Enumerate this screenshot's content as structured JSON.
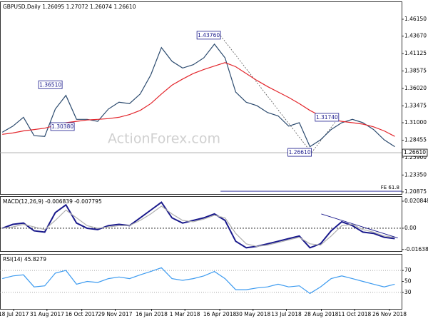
{
  "chart_data": [
    {
      "type": "line",
      "title": "GBPUSD,Daily 1.26095 1.27072 1.26074 1.26610",
      "watermark": "ActionForex.com",
      "x": [
        "2017-07-03",
        "2017-07-17",
        "2017-07-31",
        "2017-08-14",
        "2017-08-28",
        "2017-09-11",
        "2017-09-25",
        "2017-10-09",
        "2017-10-23",
        "2017-11-06",
        "2017-11-20",
        "2017-12-04",
        "2017-12-18",
        "2018-01-01",
        "2018-01-15",
        "2018-01-29",
        "2018-02-12",
        "2018-02-26",
        "2018-03-12",
        "2018-03-26",
        "2018-04-09",
        "2018-04-23",
        "2018-05-07",
        "2018-05-21",
        "2018-06-04",
        "2018-06-18",
        "2018-07-02",
        "2018-07-16",
        "2018-07-30",
        "2018-08-13",
        "2018-08-27",
        "2018-09-10",
        "2018-09-24",
        "2018-10-08",
        "2018-10-22",
        "2018-11-05",
        "2018-11-19",
        "2018-12-03"
      ],
      "xlim": [
        "2017-06-30",
        "2018-12-12"
      ],
      "series": [
        {
          "color": "#2b4a6e",
          "values": [
            1.296,
            1.305,
            1.318,
            1.291,
            1.29,
            1.33,
            1.35,
            1.315,
            1.315,
            1.312,
            1.33,
            1.34,
            1.338,
            1.352,
            1.38,
            1.42,
            1.4,
            1.39,
            1.395,
            1.405,
            1.425,
            1.405,
            1.355,
            1.34,
            1.335,
            1.325,
            1.32,
            1.305,
            1.31,
            1.275,
            1.285,
            1.3,
            1.31,
            1.315,
            1.31,
            1.3,
            1.285,
            1.275
          ]
        },
        {
          "color": "#e3262c",
          "values": [
            1.293,
            1.295,
            1.298,
            1.3,
            1.302,
            1.306,
            1.31,
            1.312,
            1.314,
            1.315,
            1.316,
            1.318,
            1.322,
            1.328,
            1.338,
            1.352,
            1.365,
            1.374,
            1.382,
            1.388,
            1.393,
            1.398,
            1.392,
            1.382,
            1.372,
            1.363,
            1.355,
            1.347,
            1.338,
            1.328,
            1.32,
            1.315,
            1.312,
            1.31,
            1.308,
            1.304,
            1.298,
            1.29
          ]
        }
      ],
      "ylim": [
        1.2056,
        1.4876
      ],
      "yticks": [
        {
          "value": 1.4615,
          "label": "1.46150"
        },
        {
          "value": 1.4367,
          "label": "1.43670"
        },
        {
          "value": 1.41125,
          "label": "1.41125"
        },
        {
          "value": 1.38575,
          "label": "1.38575"
        },
        {
          "value": 1.3602,
          "label": "1.36020"
        },
        {
          "value": 1.33475,
          "label": "1.33475"
        },
        {
          "value": 1.31,
          "label": "1.31000"
        },
        {
          "value": 1.28455,
          "label": "1.28455"
        },
        {
          "value": 1.259,
          "label": "1.25900"
        },
        {
          "value": 1.2335,
          "label": "1.23350"
        },
        {
          "value": 1.20875,
          "label": "1.20875"
        }
      ],
      "annotations": [
        {
          "x": "2017-09-20",
          "value": 1.3651,
          "label": "1.36510"
        },
        {
          "x": "2017-10-06",
          "value": 1.3038,
          "label": "1.30380"
        },
        {
          "x": "2018-04-17",
          "value": 1.4376,
          "label": "1.43760"
        },
        {
          "x": "2018-08-15",
          "value": 1.2661,
          "label": "1.26610"
        },
        {
          "x": "2018-09-20",
          "value": 1.3174,
          "label": "1.31740"
        }
      ],
      "last": {
        "value": 1.2661,
        "label": "1.26610"
      },
      "fe": {
        "x": "2018-04-17",
        "value": 1.2097,
        "label": "FE 61.8"
      },
      "grid": false
    },
    {
      "type": "line",
      "title": "MACD(12,26,9) -0.006839 -0.007795",
      "series": [
        {
          "color": "#1a1a8c",
          "values": [
            0.0,
            0.003,
            0.004,
            -0.002,
            -0.003,
            0.012,
            0.018,
            0.004,
            0.0,
            -0.001,
            0.002,
            0.003,
            0.002,
            0.008,
            0.014,
            0.02,
            0.008,
            0.004,
            0.006,
            0.008,
            0.011,
            0.006,
            -0.01,
            -0.015,
            -0.014,
            -0.012,
            -0.01,
            -0.008,
            -0.006,
            -0.015,
            -0.012,
            -0.002,
            0.005,
            0.002,
            -0.003,
            -0.004,
            -0.007,
            -0.008
          ]
        },
        {
          "color": "#b0b0b0",
          "values": [
            0.0,
            0.001,
            0.003,
            0.001,
            -0.001,
            0.006,
            0.014,
            0.008,
            0.002,
            0.0,
            0.001,
            0.002,
            0.002,
            0.006,
            0.011,
            0.017,
            0.011,
            0.006,
            0.005,
            0.007,
            0.01,
            0.008,
            -0.004,
            -0.012,
            -0.014,
            -0.013,
            -0.011,
            -0.009,
            -0.007,
            -0.012,
            -0.013,
            -0.006,
            0.002,
            0.003,
            -0.001,
            -0.003,
            -0.006,
            -0.007
          ]
        }
      ],
      "ylim": [
        -0.0176,
        0.0247
      ],
      "yticks": [
        0.020848,
        {
          "value": 0,
          "label": "0.00"
        },
        -0.016389
      ],
      "trendline": {
        "x": [
          "2018-08-28",
          "2018-12-07"
        ],
        "values": [
          0.011,
          -0.0075
        ]
      },
      "grid": false
    },
    {
      "type": "line",
      "title": "RSI(14) 45.8279",
      "series": [
        {
          "color": "#3d9bf0",
          "values": [
            55,
            60,
            62,
            40,
            42,
            65,
            70,
            45,
            50,
            48,
            55,
            58,
            55,
            62,
            68,
            75,
            55,
            52,
            55,
            60,
            68,
            55,
            35,
            35,
            38,
            40,
            45,
            40,
            42,
            28,
            40,
            55,
            60,
            55,
            50,
            45,
            40,
            45
          ]
        }
      ],
      "ylim": [
        0,
        100
      ],
      "yticks": [
        70,
        50,
        30
      ],
      "levels": [
        70,
        30
      ],
      "xticks": [
        {
          "value": "2017-07-18",
          "label": "18 Jul 2017"
        },
        {
          "value": "2017-08-31",
          "label": "31 Aug 2017"
        },
        {
          "value": "2017-10-16",
          "label": "16 Oct 2017"
        },
        {
          "value": "2017-11-29",
          "label": "29 Nov 2017"
        },
        {
          "value": "2018-01-16",
          "label": "16 Jan 2018"
        },
        {
          "value": "2018-03-01",
          "label": "1 Mar 2018"
        },
        {
          "value": "2018-04-16",
          "label": "16 Apr 2018"
        },
        {
          "value": "2018-05-30",
          "label": "30 May 2018"
        },
        {
          "value": "2018-07-13",
          "label": "13 Jul 2018"
        },
        {
          "value": "2018-08-28",
          "label": "28 Aug 2018"
        },
        {
          "value": "2018-10-11",
          "label": "11 Oct 2018"
        },
        {
          "value": "2018-11-26",
          "label": "26 Nov 2018"
        }
      ],
      "grid": false
    }
  ]
}
